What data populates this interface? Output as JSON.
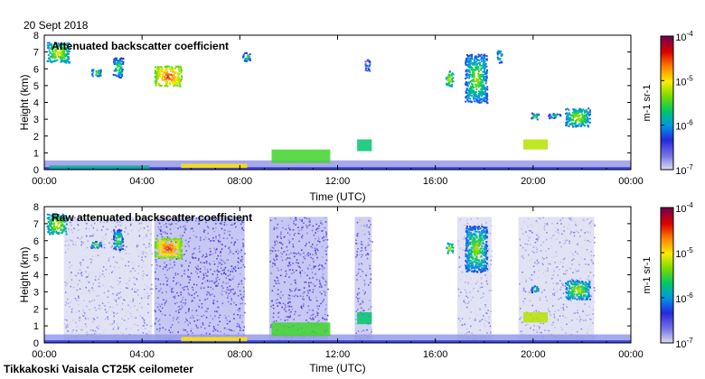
{
  "date_label": "20 Sept 2018",
  "footer": "Tikkakoski Vaisala CT25K ceilometer",
  "chart_data": [
    {
      "type": "heatmap",
      "title": "Attenuated backscatter coefficient",
      "xlabel": "Time (UTC)",
      "ylabel": "Height (km)",
      "xlim": [
        0,
        24
      ],
      "ylim": [
        0,
        8
      ],
      "x_ticks": [
        "00:00",
        "04:00",
        "08:00",
        "12:00",
        "16:00",
        "20:00",
        "00:00"
      ],
      "y_ticks": [
        "0",
        "1",
        "2",
        "3",
        "4",
        "5",
        "6",
        "7",
        "8"
      ],
      "colorbar": {
        "unit_label": "m-1 sr-1",
        "scale": "log",
        "min": 1e-07,
        "max": 0.0001,
        "tick_labels": [
          "10-7",
          "10-6",
          "10-5",
          "10-4"
        ]
      },
      "layers": [
        {
          "t0": 0.0,
          "t1": 24.0,
          "h0": 0.0,
          "h1": 0.55,
          "level": "1e-6.8"
        },
        {
          "t0": 0.0,
          "t1": 24.0,
          "h0": 0.0,
          "h1": 0.15,
          "level": "1e-6.3"
        },
        {
          "t0": 0.2,
          "t1": 4.3,
          "h0": 0.05,
          "h1": 0.25,
          "level": "1e-5.8"
        },
        {
          "t0": 5.6,
          "t1": 8.3,
          "h0": 0.1,
          "h1": 0.35,
          "level": "1e-5"
        },
        {
          "t0": 9.3,
          "t1": 11.7,
          "h0": 0.4,
          "h1": 1.2,
          "level": "1e-5.5"
        },
        {
          "t0": 12.8,
          "t1": 13.4,
          "h0": 1.1,
          "h1": 1.8,
          "level": "1e-5.7"
        },
        {
          "t0": 19.6,
          "t1": 20.6,
          "h0": 1.2,
          "h1": 1.8,
          "level": "1e-5.2"
        }
      ],
      "clouds": [
        {
          "t0": 0.1,
          "t1": 1.0,
          "h0": 6.4,
          "h1": 7.6,
          "level": "1e-5"
        },
        {
          "t0": 1.9,
          "t1": 2.3,
          "h0": 5.6,
          "h1": 6.0,
          "level": "1e-5.2"
        },
        {
          "t0": 2.8,
          "t1": 3.2,
          "h0": 5.5,
          "h1": 6.7,
          "level": "1e-5.3"
        },
        {
          "t0": 4.5,
          "t1": 5.6,
          "h0": 5.0,
          "h1": 6.2,
          "level": "1e-4.4"
        },
        {
          "t0": 8.1,
          "t1": 8.4,
          "h0": 6.5,
          "h1": 7.0,
          "level": "1e-5.3"
        },
        {
          "t0": 13.1,
          "t1": 13.3,
          "h0": 5.9,
          "h1": 6.6,
          "level": "1e-5.6"
        },
        {
          "t0": 16.4,
          "t1": 16.7,
          "h0": 5.0,
          "h1": 5.9,
          "level": "1e-5"
        },
        {
          "t0": 17.2,
          "t1": 18.1,
          "h0": 4.0,
          "h1": 6.9,
          "level": "1e-5.2"
        },
        {
          "t0": 18.5,
          "t1": 18.7,
          "h0": 6.4,
          "h1": 7.2,
          "level": "1e-5.3"
        },
        {
          "t0": 19.9,
          "t1": 20.2,
          "h0": 3.0,
          "h1": 3.4,
          "level": "1e-5.3"
        },
        {
          "t0": 20.6,
          "t1": 21.1,
          "h0": 3.1,
          "h1": 3.4,
          "level": "1e-5.4"
        },
        {
          "t0": 21.3,
          "t1": 22.3,
          "h0": 2.6,
          "h1": 3.7,
          "level": "1e-5.1"
        }
      ]
    },
    {
      "type": "heatmap",
      "title": "Raw attenuated backscatter coefficient",
      "xlabel": "Time (UTC)",
      "ylabel": "Height (km)",
      "xlim": [
        0,
        24
      ],
      "ylim": [
        0,
        8
      ],
      "x_ticks": [
        "00:00",
        "04:00",
        "08:00",
        "12:00",
        "16:00",
        "20:00",
        "00:00"
      ],
      "y_ticks": [
        "0",
        "1",
        "2",
        "3",
        "4",
        "5",
        "6",
        "7",
        "8"
      ],
      "colorbar": {
        "unit_label": "m-1 sr-1",
        "scale": "log",
        "min": 1e-07,
        "max": 0.0001,
        "tick_labels": [
          "10-7",
          "10-6",
          "10-5",
          "10-4"
        ]
      },
      "noise_bands": [
        {
          "t0": 4.5,
          "t1": 8.2,
          "h0": 0.0,
          "h1": 7.4,
          "level": "1e-6.6"
        },
        {
          "t0": 9.2,
          "t1": 11.6,
          "h0": 0.0,
          "h1": 7.4,
          "level": "1e-6.6"
        },
        {
          "t0": 12.7,
          "t1": 13.4,
          "h0": 0.0,
          "h1": 7.4,
          "level": "1e-6.7"
        },
        {
          "t0": 0.8,
          "t1": 4.4,
          "h0": 0.0,
          "h1": 7.4,
          "level": "1e-6.9"
        },
        {
          "t0": 16.9,
          "t1": 18.3,
          "h0": 0.0,
          "h1": 7.4,
          "level": "1e-6.9"
        },
        {
          "t0": 19.4,
          "t1": 22.5,
          "h0": 0.0,
          "h1": 7.4,
          "level": "1e-6.9"
        }
      ],
      "layers": [
        {
          "t0": 0.0,
          "t1": 24.0,
          "h0": 0.0,
          "h1": 0.5,
          "level": "1e-6.8"
        },
        {
          "t0": 0.0,
          "t1": 24.0,
          "h0": 0.0,
          "h1": 0.15,
          "level": "1e-6.3"
        },
        {
          "t0": 5.6,
          "t1": 8.3,
          "h0": 0.1,
          "h1": 0.35,
          "level": "1e-5"
        },
        {
          "t0": 9.3,
          "t1": 11.7,
          "h0": 0.4,
          "h1": 1.2,
          "level": "1e-5.5"
        },
        {
          "t0": 12.8,
          "t1": 13.4,
          "h0": 1.1,
          "h1": 1.8,
          "level": "1e-5.7"
        },
        {
          "t0": 19.6,
          "t1": 20.6,
          "h0": 1.2,
          "h1": 1.8,
          "level": "1e-5.2"
        }
      ],
      "clouds": [
        {
          "t0": 0.1,
          "t1": 0.9,
          "h0": 6.4,
          "h1": 7.6,
          "level": "1e-5"
        },
        {
          "t0": 1.9,
          "t1": 2.3,
          "h0": 5.6,
          "h1": 6.0,
          "level": "1e-5.2"
        },
        {
          "t0": 2.8,
          "t1": 3.2,
          "h0": 5.5,
          "h1": 6.7,
          "level": "1e-5.3"
        },
        {
          "t0": 4.5,
          "t1": 5.6,
          "h0": 5.0,
          "h1": 6.2,
          "level": "1e-4.4"
        },
        {
          "t0": 16.4,
          "t1": 16.7,
          "h0": 5.3,
          "h1": 5.9,
          "level": "1e-5"
        },
        {
          "t0": 17.2,
          "t1": 18.1,
          "h0": 4.2,
          "h1": 6.9,
          "level": "1e-5.2"
        },
        {
          "t0": 19.9,
          "t1": 20.2,
          "h0": 3.0,
          "h1": 3.4,
          "level": "1e-5.3"
        },
        {
          "t0": 21.3,
          "t1": 22.3,
          "h0": 2.6,
          "h1": 3.7,
          "level": "1e-5.1"
        }
      ]
    }
  ]
}
